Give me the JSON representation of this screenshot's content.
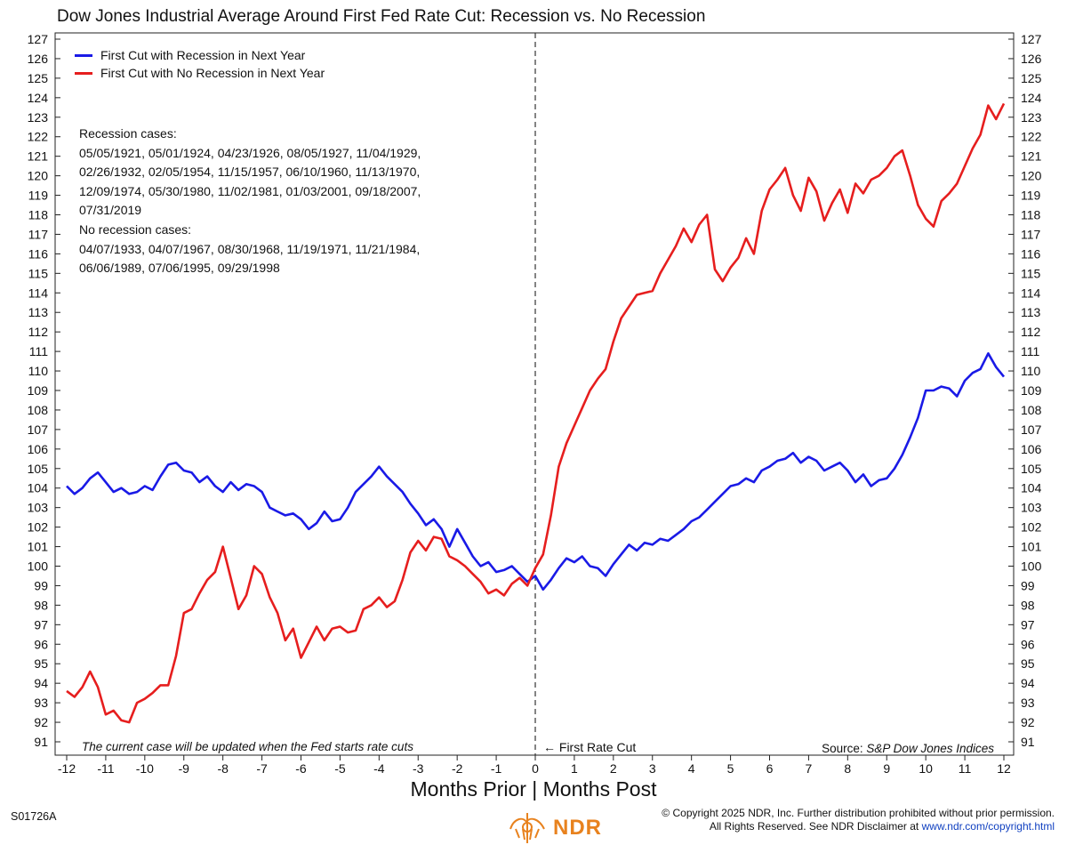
{
  "chart_data": {
    "type": "line",
    "title": "Dow Jones Industrial Average Around First Fed Rate Cut: Recession vs. No Recession",
    "xlabel": "Months Prior | Months Post",
    "ylabel": "",
    "xlim": [
      -12,
      12
    ],
    "ylim": [
      91,
      127
    ],
    "x_ticks": [
      -12,
      -11,
      -10,
      -9,
      -8,
      -7,
      -6,
      -5,
      -4,
      -3,
      -2,
      -1,
      0,
      1,
      2,
      3,
      4,
      5,
      6,
      7,
      8,
      9,
      10,
      11,
      12
    ],
    "y_ticks": [
      91,
      92,
      93,
      94,
      95,
      96,
      97,
      98,
      99,
      100,
      101,
      102,
      103,
      104,
      105,
      106,
      107,
      108,
      109,
      110,
      111,
      112,
      113,
      114,
      115,
      116,
      117,
      118,
      119,
      120,
      121,
      122,
      123,
      124,
      125,
      126,
      127
    ],
    "grid": false,
    "legend_position": "top-left",
    "series": [
      {
        "name": "First Cut with Recession in Next Year",
        "color": "#1a1ae6",
        "points": [
          [
            -12,
            104.1
          ],
          [
            -11.8,
            103.7
          ],
          [
            -11.6,
            104.0
          ],
          [
            -11.4,
            104.5
          ],
          [
            -11.2,
            104.8
          ],
          [
            -11.0,
            104.3
          ],
          [
            -10.8,
            103.8
          ],
          [
            -10.6,
            104.0
          ],
          [
            -10.4,
            103.7
          ],
          [
            -10.2,
            103.8
          ],
          [
            -10.0,
            104.1
          ],
          [
            -9.8,
            103.9
          ],
          [
            -9.6,
            104.6
          ],
          [
            -9.4,
            105.2
          ],
          [
            -9.2,
            105.3
          ],
          [
            -9.0,
            104.9
          ],
          [
            -8.8,
            104.8
          ],
          [
            -8.6,
            104.3
          ],
          [
            -8.4,
            104.6
          ],
          [
            -8.2,
            104.1
          ],
          [
            -8.0,
            103.8
          ],
          [
            -7.8,
            104.3
          ],
          [
            -7.6,
            103.9
          ],
          [
            -7.4,
            104.2
          ],
          [
            -7.2,
            104.1
          ],
          [
            -7.0,
            103.8
          ],
          [
            -6.8,
            103.0
          ],
          [
            -6.6,
            102.8
          ],
          [
            -6.4,
            102.6
          ],
          [
            -6.2,
            102.7
          ],
          [
            -6.0,
            102.4
          ],
          [
            -5.8,
            101.9
          ],
          [
            -5.6,
            102.2
          ],
          [
            -5.4,
            102.8
          ],
          [
            -5.2,
            102.3
          ],
          [
            -5.0,
            102.4
          ],
          [
            -4.8,
            103.0
          ],
          [
            -4.6,
            103.8
          ],
          [
            -4.4,
            104.2
          ],
          [
            -4.2,
            104.6
          ],
          [
            -4.0,
            105.1
          ],
          [
            -3.8,
            104.6
          ],
          [
            -3.6,
            104.2
          ],
          [
            -3.4,
            103.8
          ],
          [
            -3.2,
            103.2
          ],
          [
            -3.0,
            102.7
          ],
          [
            -2.8,
            102.1
          ],
          [
            -2.6,
            102.4
          ],
          [
            -2.4,
            101.9
          ],
          [
            -2.2,
            101.0
          ],
          [
            -2.0,
            101.9
          ],
          [
            -1.8,
            101.2
          ],
          [
            -1.6,
            100.5
          ],
          [
            -1.4,
            100.0
          ],
          [
            -1.2,
            100.2
          ],
          [
            -1.0,
            99.7
          ],
          [
            -0.8,
            99.8
          ],
          [
            -0.6,
            100.0
          ],
          [
            -0.4,
            99.6
          ],
          [
            -0.2,
            99.2
          ],
          [
            0,
            99.5
          ],
          [
            0.2,
            98.8
          ],
          [
            0.4,
            99.3
          ],
          [
            0.6,
            99.9
          ],
          [
            0.8,
            100.4
          ],
          [
            1.0,
            100.2
          ],
          [
            1.2,
            100.5
          ],
          [
            1.4,
            100.0
          ],
          [
            1.6,
            99.9
          ],
          [
            1.8,
            99.5
          ],
          [
            2.0,
            100.1
          ],
          [
            2.2,
            100.6
          ],
          [
            2.4,
            101.1
          ],
          [
            2.6,
            100.8
          ],
          [
            2.8,
            101.2
          ],
          [
            3.0,
            101.1
          ],
          [
            3.2,
            101.4
          ],
          [
            3.4,
            101.3
          ],
          [
            3.6,
            101.6
          ],
          [
            3.8,
            101.9
          ],
          [
            4.0,
            102.3
          ],
          [
            4.2,
            102.5
          ],
          [
            4.4,
            102.9
          ],
          [
            4.6,
            103.3
          ],
          [
            4.8,
            103.7
          ],
          [
            5.0,
            104.1
          ],
          [
            5.2,
            104.2
          ],
          [
            5.4,
            104.5
          ],
          [
            5.6,
            104.3
          ],
          [
            5.8,
            104.9
          ],
          [
            6.0,
            105.1
          ],
          [
            6.2,
            105.4
          ],
          [
            6.4,
            105.5
          ],
          [
            6.6,
            105.8
          ],
          [
            6.8,
            105.3
          ],
          [
            7.0,
            105.6
          ],
          [
            7.2,
            105.4
          ],
          [
            7.4,
            104.9
          ],
          [
            7.6,
            105.1
          ],
          [
            7.8,
            105.3
          ],
          [
            8.0,
            104.9
          ],
          [
            8.2,
            104.3
          ],
          [
            8.4,
            104.7
          ],
          [
            8.6,
            104.1
          ],
          [
            8.8,
            104.4
          ],
          [
            9.0,
            104.5
          ],
          [
            9.2,
            105.0
          ],
          [
            9.4,
            105.7
          ],
          [
            9.6,
            106.6
          ],
          [
            9.8,
            107.6
          ],
          [
            10.0,
            109.0
          ],
          [
            10.2,
            109.0
          ],
          [
            10.4,
            109.2
          ],
          [
            10.6,
            109.1
          ],
          [
            10.8,
            108.7
          ],
          [
            11.0,
            109.5
          ],
          [
            11.2,
            109.9
          ],
          [
            11.4,
            110.1
          ],
          [
            11.6,
            110.9
          ],
          [
            11.8,
            110.2
          ],
          [
            12.0,
            109.7
          ]
        ]
      },
      {
        "name": "First Cut with No Recession in Next Year",
        "color": "#e61e1e",
        "points": [
          [
            -12,
            93.6
          ],
          [
            -11.8,
            93.3
          ],
          [
            -11.6,
            93.8
          ],
          [
            -11.4,
            94.6
          ],
          [
            -11.2,
            93.8
          ],
          [
            -11.0,
            92.4
          ],
          [
            -10.8,
            92.6
          ],
          [
            -10.6,
            92.1
          ],
          [
            -10.4,
            92.0
          ],
          [
            -10.2,
            93.0
          ],
          [
            -10.0,
            93.2
          ],
          [
            -9.8,
            93.5
          ],
          [
            -9.6,
            93.9
          ],
          [
            -9.4,
            93.9
          ],
          [
            -9.2,
            95.4
          ],
          [
            -9.0,
            97.6
          ],
          [
            -8.8,
            97.8
          ],
          [
            -8.6,
            98.6
          ],
          [
            -8.4,
            99.3
          ],
          [
            -8.2,
            99.7
          ],
          [
            -8.0,
            101.0
          ],
          [
            -7.8,
            99.4
          ],
          [
            -7.6,
            97.8
          ],
          [
            -7.4,
            98.5
          ],
          [
            -7.2,
            100.0
          ],
          [
            -7.0,
            99.6
          ],
          [
            -6.8,
            98.4
          ],
          [
            -6.6,
            97.6
          ],
          [
            -6.4,
            96.2
          ],
          [
            -6.2,
            96.8
          ],
          [
            -6.0,
            95.3
          ],
          [
            -5.8,
            96.1
          ],
          [
            -5.6,
            96.9
          ],
          [
            -5.4,
            96.2
          ],
          [
            -5.2,
            96.8
          ],
          [
            -5.0,
            96.9
          ],
          [
            -4.8,
            96.6
          ],
          [
            -4.6,
            96.7
          ],
          [
            -4.4,
            97.8
          ],
          [
            -4.2,
            98.0
          ],
          [
            -4.0,
            98.4
          ],
          [
            -3.8,
            97.9
          ],
          [
            -3.6,
            98.2
          ],
          [
            -3.4,
            99.3
          ],
          [
            -3.2,
            100.7
          ],
          [
            -3.0,
            101.3
          ],
          [
            -2.8,
            100.8
          ],
          [
            -2.6,
            101.5
          ],
          [
            -2.4,
            101.4
          ],
          [
            -2.2,
            100.5
          ],
          [
            -2.0,
            100.3
          ],
          [
            -1.8,
            100.0
          ],
          [
            -1.6,
            99.6
          ],
          [
            -1.4,
            99.2
          ],
          [
            -1.2,
            98.6
          ],
          [
            -1.0,
            98.8
          ],
          [
            -0.8,
            98.5
          ],
          [
            -0.6,
            99.1
          ],
          [
            -0.4,
            99.4
          ],
          [
            -0.2,
            99.0
          ],
          [
            0,
            99.9
          ],
          [
            0.2,
            100.6
          ],
          [
            0.4,
            102.6
          ],
          [
            0.6,
            105.1
          ],
          [
            0.8,
            106.3
          ],
          [
            1.0,
            107.2
          ],
          [
            1.2,
            108.1
          ],
          [
            1.4,
            109.0
          ],
          [
            1.6,
            109.6
          ],
          [
            1.8,
            110.1
          ],
          [
            2.0,
            111.5
          ],
          [
            2.2,
            112.7
          ],
          [
            2.4,
            113.3
          ],
          [
            2.6,
            113.9
          ],
          [
            2.8,
            114.0
          ],
          [
            3.0,
            114.1
          ],
          [
            3.2,
            115.0
          ],
          [
            3.4,
            115.7
          ],
          [
            3.6,
            116.4
          ],
          [
            3.8,
            117.3
          ],
          [
            4.0,
            116.6
          ],
          [
            4.2,
            117.5
          ],
          [
            4.4,
            118.0
          ],
          [
            4.6,
            115.2
          ],
          [
            4.8,
            114.6
          ],
          [
            5.0,
            115.3
          ],
          [
            5.2,
            115.8
          ],
          [
            5.4,
            116.8
          ],
          [
            5.6,
            116.0
          ],
          [
            5.8,
            118.2
          ],
          [
            6.0,
            119.3
          ],
          [
            6.2,
            119.8
          ],
          [
            6.4,
            120.4
          ],
          [
            6.6,
            119.0
          ],
          [
            6.8,
            118.2
          ],
          [
            7.0,
            119.9
          ],
          [
            7.2,
            119.2
          ],
          [
            7.4,
            117.7
          ],
          [
            7.6,
            118.6
          ],
          [
            7.8,
            119.3
          ],
          [
            8.0,
            118.1
          ],
          [
            8.2,
            119.6
          ],
          [
            8.4,
            119.1
          ],
          [
            8.6,
            119.8
          ],
          [
            8.8,
            120.0
          ],
          [
            9.0,
            120.4
          ],
          [
            9.2,
            121.0
          ],
          [
            9.4,
            121.3
          ],
          [
            9.6,
            120.0
          ],
          [
            9.8,
            118.5
          ],
          [
            10.0,
            117.8
          ],
          [
            10.2,
            117.4
          ],
          [
            10.4,
            118.7
          ],
          [
            10.6,
            119.1
          ],
          [
            10.8,
            119.6
          ],
          [
            11.0,
            120.5
          ],
          [
            11.2,
            121.4
          ],
          [
            11.4,
            122.1
          ],
          [
            11.6,
            123.6
          ],
          [
            11.8,
            122.9
          ],
          [
            12.0,
            123.7
          ]
        ]
      }
    ],
    "annotations": {
      "vertical_line_x": 0,
      "vertical_line_label": "← First Rate Cut",
      "note": "The current case will be updated when the Fed starts rate cuts",
      "source_prefix": "Source: ",
      "source_name": "S&P Dow Jones Indices"
    }
  },
  "cases": {
    "recession_title": "Recession cases:",
    "recession_lines": [
      "05/05/1921, 05/01/1924, 04/23/1926, 08/05/1927, 11/04/1929,",
      "02/26/1932, 02/05/1954, 11/15/1957, 06/10/1960, 11/13/1970,",
      "12/09/1974, 05/30/1980, 11/02/1981, 01/03/2001, 09/18/2007,",
      "07/31/2019"
    ],
    "no_recession_title": "No recession cases:",
    "no_recession_lines": [
      "04/07/1933, 04/07/1967, 08/30/1968, 11/19/1971, 11/21/1984,",
      "06/06/1989, 07/06/1995, 09/29/1998"
    ]
  },
  "footer": {
    "code": "S01726A",
    "copyright_line1": "© Copyright 2025 NDR, Inc. Further distribution prohibited without prior permission.",
    "copyright_line2": "All Rights Reserved. See NDR Disclaimer at ",
    "copyright_link": "www.ndr.com/copyright.html",
    "logo_text": "NDR",
    "logo_color": "#e8821e"
  }
}
